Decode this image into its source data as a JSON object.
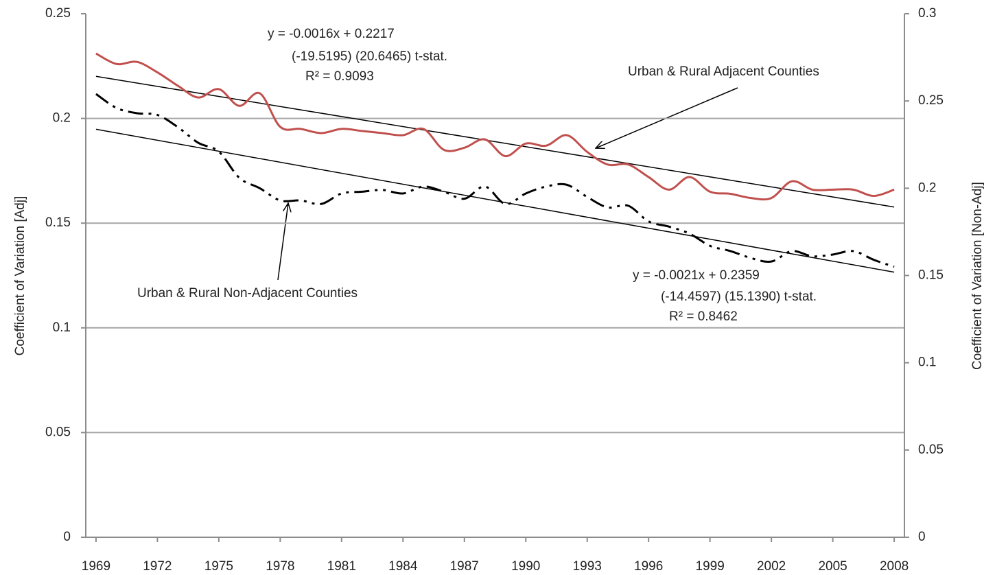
{
  "chart_data": {
    "type": "line",
    "x": [
      1969,
      1970,
      1971,
      1972,
      1973,
      1974,
      1975,
      1976,
      1977,
      1978,
      1979,
      1980,
      1981,
      1982,
      1983,
      1984,
      1985,
      1986,
      1987,
      1988,
      1989,
      1990,
      1991,
      1992,
      1993,
      1994,
      1995,
      1996,
      1997,
      1998,
      1999,
      2000,
      2001,
      2002,
      2003,
      2004,
      2005,
      2006,
      2007,
      2008
    ],
    "series": [
      {
        "name": "Urban & Rural Adjacent Counties",
        "color": "#c0504d",
        "axis": "y",
        "values": [
          0.231,
          0.226,
          0.227,
          0.222,
          0.2156,
          0.21,
          0.214,
          0.206,
          0.212,
          0.196,
          0.195,
          0.193,
          0.195,
          0.194,
          0.193,
          0.192,
          0.195,
          0.185,
          0.186,
          0.19,
          0.182,
          0.188,
          0.187,
          0.192,
          0.184,
          0.178,
          0.178,
          0.172,
          0.166,
          0.172,
          0.165,
          0.164,
          0.162,
          0.162,
          0.17,
          0.166,
          0.166,
          0.166,
          0.163,
          0.166
        ]
      },
      {
        "name": "Urban & Rural Non-Adjacent Counties",
        "color": "#000000",
        "axis": "y2",
        "values": [
          0.254,
          0.246,
          0.243,
          0.242,
          0.235,
          0.226,
          0.221,
          0.206,
          0.2,
          0.193,
          0.193,
          0.191,
          0.197,
          0.198,
          0.199,
          0.197,
          0.201,
          0.198,
          0.194,
          0.201,
          0.191,
          0.197,
          0.201,
          0.202,
          0.195,
          0.189,
          0.19,
          0.181,
          0.178,
          0.174,
          0.167,
          0.164,
          0.16,
          0.158,
          0.164,
          0.161,
          0.162,
          0.164,
          0.159,
          0.155
        ]
      }
    ],
    "trendlines": [
      {
        "slope": -0.0016,
        "intercept": 0.2217,
        "axis": "y",
        "color": "#000000",
        "equation": "y = -0.0016x + 0.2217",
        "t_stats": "(-19.5195)  (20.6465)  t-stat.",
        "r2": "R² = 0.9093"
      },
      {
        "slope": -0.0021,
        "intercept": 0.2359,
        "axis": "y2",
        "color": "#000000",
        "equation": "y = -0.0021x + 0.2359",
        "t_stats": "(-14.4597)  (15.1390)  t-stat.",
        "r2": "R² = 0.8462"
      }
    ],
    "ylabel": "Coefficient of Variation [Adj]",
    "y2label": "Coefficient of Variation [Non-Adj]",
    "xlim": [
      1968.5,
      2008.5
    ],
    "xticks": [
      1969,
      1972,
      1975,
      1978,
      1981,
      1984,
      1987,
      1990,
      1993,
      1996,
      1999,
      2002,
      2005,
      2008
    ],
    "ylim": [
      0,
      0.25
    ],
    "yticks": [
      0,
      0.05,
      0.1,
      0.15,
      0.2,
      0.25
    ],
    "y2lim": [
      0,
      0.3
    ],
    "y2ticks": [
      0,
      0.05,
      0.1,
      0.15,
      0.2,
      0.25,
      0.3
    ],
    "grid": true
  }
}
